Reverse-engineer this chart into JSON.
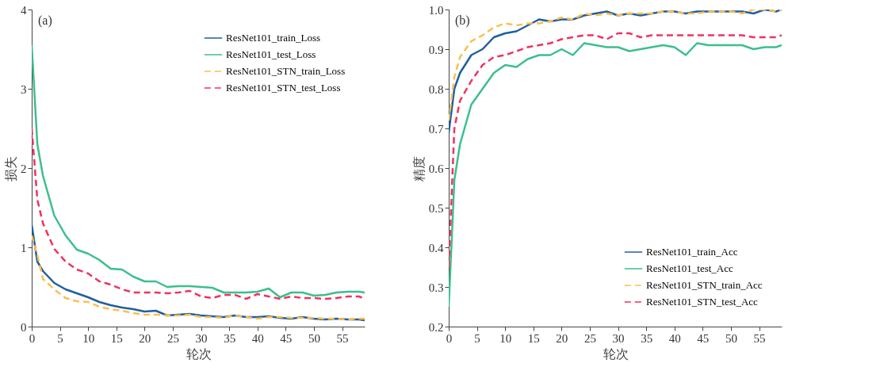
{
  "chart_data": [
    {
      "type": "line",
      "title": "(a)",
      "xlabel": "轮次",
      "ylabel": "损失",
      "x": [
        0,
        1,
        2,
        4,
        6,
        8,
        10,
        12,
        14,
        16,
        18,
        20,
        22,
        24,
        26,
        28,
        30,
        32,
        34,
        36,
        38,
        40,
        42,
        44,
        46,
        48,
        50,
        52,
        54,
        56,
        58,
        59
      ],
      "series": [
        {
          "name": "ResNet101_train_Loss",
          "color": "#1f5fa0",
          "line_style": "solid",
          "values": [
            1.28,
            0.82,
            0.7,
            0.55,
            0.47,
            0.42,
            0.37,
            0.31,
            0.27,
            0.24,
            0.22,
            0.19,
            0.2,
            0.14,
            0.15,
            0.16,
            0.14,
            0.13,
            0.12,
            0.14,
            0.12,
            0.12,
            0.13,
            0.11,
            0.1,
            0.12,
            0.1,
            0.09,
            0.1,
            0.09,
            0.09,
            0.08
          ]
        },
        {
          "name": "ResNet101_test_Loss",
          "color": "#3cbf8c",
          "line_style": "solid",
          "values": [
            3.55,
            2.3,
            1.9,
            1.4,
            1.15,
            0.97,
            0.92,
            0.84,
            0.73,
            0.72,
            0.63,
            0.57,
            0.57,
            0.5,
            0.51,
            0.51,
            0.5,
            0.49,
            0.43,
            0.43,
            0.43,
            0.44,
            0.48,
            0.37,
            0.43,
            0.43,
            0.39,
            0.4,
            0.43,
            0.44,
            0.44,
            0.43
          ]
        },
        {
          "name": "ResNet101_STN_train_Loss",
          "color": "#fbbf4f",
          "line_style": "dashed",
          "values": [
            1.15,
            0.9,
            0.6,
            0.47,
            0.36,
            0.32,
            0.31,
            0.25,
            0.22,
            0.2,
            0.17,
            0.15,
            0.15,
            0.14,
            0.14,
            0.15,
            0.12,
            0.12,
            0.11,
            0.14,
            0.12,
            0.1,
            0.12,
            0.12,
            0.11,
            0.11,
            0.11,
            0.1,
            0.1,
            0.09,
            0.1,
            0.1
          ]
        },
        {
          "name": "ResNet101_STN_test_Loss",
          "color": "#f0325f",
          "line_style": "dashed",
          "values": [
            2.5,
            1.6,
            1.3,
            0.98,
            0.82,
            0.72,
            0.67,
            0.57,
            0.53,
            0.47,
            0.43,
            0.43,
            0.43,
            0.42,
            0.43,
            0.45,
            0.38,
            0.36,
            0.4,
            0.4,
            0.35,
            0.41,
            0.38,
            0.35,
            0.38,
            0.36,
            0.36,
            0.35,
            0.36,
            0.38,
            0.38,
            0.35
          ]
        }
      ],
      "xlim": [
        0,
        59
      ],
      "xticks": [
        0,
        5,
        10,
        15,
        20,
        25,
        30,
        35,
        40,
        45,
        50,
        55
      ],
      "ylim": [
        0,
        4
      ],
      "yticks": [
        0,
        1,
        2,
        3,
        4
      ],
      "grid": false,
      "legend": "top right"
    },
    {
      "type": "line",
      "title": "(b)",
      "xlabel": "轮次",
      "ylabel": "精度",
      "x": [
        0,
        1,
        2,
        4,
        6,
        8,
        10,
        12,
        14,
        16,
        18,
        20,
        22,
        24,
        26,
        28,
        30,
        32,
        34,
        36,
        38,
        40,
        42,
        44,
        46,
        48,
        50,
        52,
        54,
        56,
        58,
        59
      ],
      "series": [
        {
          "name": "ResNet101_train_Acc",
          "color": "#1f5fa0",
          "line_style": "solid",
          "values": [
            0.69,
            0.8,
            0.84,
            0.885,
            0.9,
            0.93,
            0.94,
            0.945,
            0.96,
            0.975,
            0.97,
            0.975,
            0.975,
            0.985,
            0.99,
            0.995,
            0.985,
            0.99,
            0.985,
            0.99,
            0.995,
            0.995,
            0.99,
            0.995,
            0.995,
            0.995,
            0.995,
            0.995,
            0.99,
            1.0,
            0.995,
            1.0
          ]
        },
        {
          "name": "ResNet101_test_Acc",
          "color": "#3cbf8c",
          "line_style": "solid",
          "values": [
            0.25,
            0.57,
            0.66,
            0.76,
            0.8,
            0.84,
            0.86,
            0.855,
            0.875,
            0.885,
            0.885,
            0.9,
            0.885,
            0.915,
            0.91,
            0.905,
            0.905,
            0.895,
            0.9,
            0.905,
            0.91,
            0.905,
            0.885,
            0.915,
            0.91,
            0.91,
            0.91,
            0.91,
            0.9,
            0.905,
            0.905,
            0.91
          ]
        },
        {
          "name": "ResNet101_STN_train_Acc",
          "color": "#fbbf4f",
          "line_style": "dashed",
          "values": [
            0.72,
            0.83,
            0.88,
            0.92,
            0.935,
            0.955,
            0.965,
            0.96,
            0.965,
            0.965,
            0.97,
            0.98,
            0.975,
            0.99,
            0.985,
            0.99,
            0.985,
            0.99,
            0.99,
            0.99,
            0.995,
            0.995,
            0.99,
            0.99,
            0.995,
            0.995,
            0.995,
            0.99,
            1.0,
            1.0,
            0.995,
            1.0
          ]
        },
        {
          "name": "ResNet101_STN_test_Acc",
          "color": "#f0325f",
          "line_style": "dashed",
          "values": [
            0.35,
            0.7,
            0.77,
            0.82,
            0.86,
            0.88,
            0.885,
            0.895,
            0.905,
            0.91,
            0.915,
            0.925,
            0.93,
            0.935,
            0.935,
            0.925,
            0.94,
            0.94,
            0.93,
            0.935,
            0.935,
            0.935,
            0.935,
            0.935,
            0.935,
            0.935,
            0.935,
            0.935,
            0.93,
            0.93,
            0.93,
            0.935
          ]
        }
      ],
      "xlim": [
        0,
        59
      ],
      "xticks": [
        0,
        5,
        10,
        15,
        20,
        25,
        30,
        35,
        40,
        45,
        50,
        55
      ],
      "ylim": [
        0.2,
        1.0
      ],
      "yticks": [
        0.2,
        0.3,
        0.4,
        0.5,
        0.6,
        0.7,
        0.8,
        0.9,
        {
          "value": 1.0,
          "label": "1.0"
        }
      ],
      "grid": false,
      "legend": "bottom right"
    }
  ]
}
